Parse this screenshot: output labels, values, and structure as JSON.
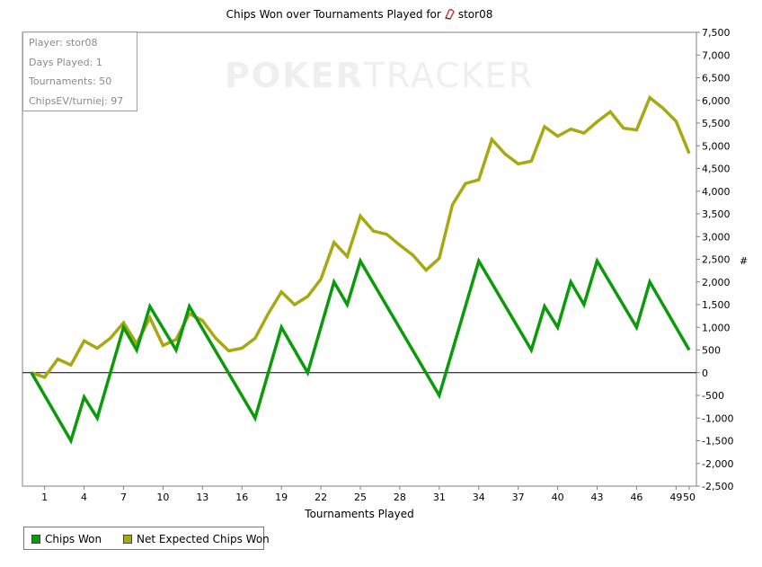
{
  "chart_data": {
    "type": "line",
    "title": "Chips Won over Tournaments Played for",
    "player_name": "stor08",
    "xlabel": "Tournaments Played",
    "ylabel": "#",
    "x_ticks": [
      1,
      4,
      7,
      10,
      13,
      16,
      19,
      22,
      25,
      28,
      31,
      34,
      37,
      40,
      43,
      46,
      49,
      50
    ],
    "x_range": [
      0,
      50
    ],
    "ylim": [
      -2500,
      7500
    ],
    "y_ticks": [
      -2500,
      -2000,
      -1500,
      -1000,
      -500,
      0,
      500,
      1000,
      1500,
      2000,
      2500,
      3000,
      3500,
      4000,
      4500,
      5000,
      5500,
      6000,
      6500,
      7000,
      7500
    ],
    "y_tick_labels": [
      "-2,500",
      "-2,000",
      "-1,500",
      "-1,000",
      "-500",
      "0",
      "500",
      "1,000",
      "1,500",
      "2,000",
      "2,500",
      "3,000",
      "3,500",
      "4,000",
      "4,500",
      "5,000",
      "5,500",
      "6,000",
      "6,500",
      "7,000",
      "7,500"
    ],
    "legend_position": "bottom-left",
    "series": [
      {
        "name": "Chips Won",
        "color": "#0a9a0a",
        "x": [
          0,
          3,
          4,
          5,
          7,
          8,
          9,
          11,
          12,
          17,
          19,
          21,
          23,
          24,
          25,
          31,
          34,
          38,
          39,
          40,
          41,
          42,
          43,
          46,
          47,
          50
        ],
        "values": [
          0,
          -1500,
          -540,
          -1000,
          1000,
          500,
          1460,
          500,
          1460,
          -1000,
          1000,
          0,
          2000,
          1500,
          2460,
          -500,
          2460,
          500,
          1460,
          1000,
          2000,
          1500,
          2460,
          1000,
          2000,
          500
        ]
      },
      {
        "name": "Net Expected Chips Won",
        "color": "#a8a812",
        "x": [
          0,
          1,
          2,
          3,
          4,
          5,
          6,
          7,
          8,
          9,
          10,
          11,
          12,
          13,
          14,
          15,
          16,
          17,
          18,
          19,
          20,
          21,
          22,
          23,
          24,
          25,
          26,
          27,
          28,
          29,
          30,
          31,
          32,
          33,
          34,
          35,
          36,
          37,
          38,
          39,
          40,
          41,
          42,
          43,
          44,
          45,
          46,
          47,
          48,
          49,
          50
        ],
        "values": [
          0,
          -100,
          300,
          170,
          700,
          540,
          760,
          1100,
          640,
          1210,
          600,
          730,
          1300,
          1150,
          760,
          480,
          540,
          760,
          1300,
          1780,
          1500,
          1680,
          2060,
          2870,
          2560,
          3450,
          3120,
          3050,
          2810,
          2590,
          2260,
          2520,
          3700,
          4170,
          4250,
          5140,
          4820,
          4600,
          4660,
          5420,
          5210,
          5370,
          5280,
          5530,
          5750,
          5390,
          5350,
          6060,
          5830,
          5540,
          4830
        ]
      }
    ]
  },
  "stats": {
    "player": "Player: stor08",
    "days_played": "Days Played: 1",
    "tournaments": "Tournaments: 50",
    "chipsev": "ChipsEV/turniej: 97"
  },
  "watermark": {
    "bold": "POKER",
    "light": "TRACKER"
  }
}
